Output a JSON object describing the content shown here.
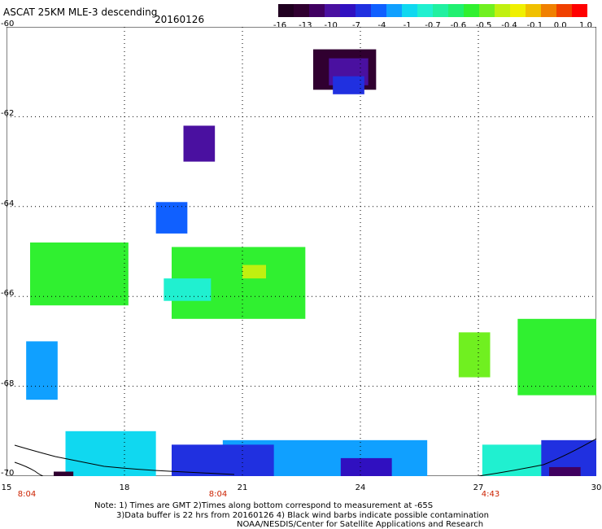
{
  "header": {
    "title": "ASCAT 25KM MLE-3 descending",
    "date": "20160126"
  },
  "legend": {
    "colors": [
      "#200020",
      "#300030",
      "#400060",
      "#4a10a0",
      "#3010c0",
      "#2030e0",
      "#1060ff",
      "#10a0ff",
      "#10d8f0",
      "#20f0d0",
      "#20f0a0",
      "#20f070",
      "#30f030",
      "#70f020",
      "#c0f010",
      "#f0f000",
      "#f0c000",
      "#f08000",
      "#f04000",
      "#ff0000"
    ],
    "labels": [
      "-16",
      "-13",
      "-10",
      "-7",
      "-4",
      "-1",
      "-0.7",
      "-0.6",
      "-0.5",
      "-0.4",
      "-0.1",
      "0.0",
      "1.0"
    ]
  },
  "axes": {
    "y_labels": [
      "-60",
      "-62",
      "-64",
      "-66",
      "-68",
      "-70"
    ],
    "x_labels": [
      "15",
      "18",
      "21",
      "24",
      "27",
      "30"
    ]
  },
  "times": [
    "8:04",
    "8:04",
    "4:43"
  ],
  "footer": {
    "line1": "Note: 1) Times are GMT 2)Times along bottom correspond to measurement at -65S",
    "line2": "3)Data buffer is 22 hrs from 20160126 4) Black wind barbs indicate possible contamination",
    "line3": "NOAA/NESDIS/Center for Satellite Applications and Research"
  },
  "map": {
    "xlim": [
      15,
      30
    ],
    "ylim": [
      -70,
      -60
    ],
    "gridlines_x": [
      18,
      21,
      24,
      27
    ],
    "gridlines_y": [
      -62,
      -64,
      -66,
      -68
    ],
    "data_regions": [
      {
        "lon": 22.8,
        "lat": -60.5,
        "w": 1.6,
        "h": 0.9,
        "color": "#300030"
      },
      {
        "lon": 23.2,
        "lat": -60.7,
        "w": 1.0,
        "h": 0.6,
        "color": "#4a10a0"
      },
      {
        "lon": 23.3,
        "lat": -61.1,
        "w": 0.8,
        "h": 0.4,
        "color": "#2030e0"
      },
      {
        "lon": 19.5,
        "lat": -62.2,
        "w": 0.8,
        "h": 0.8,
        "color": "#4a10a0"
      },
      {
        "lon": 18.8,
        "lat": -63.9,
        "w": 0.8,
        "h": 0.7,
        "color": "#1060ff"
      },
      {
        "lon": 15.6,
        "lat": -64.8,
        "w": 2.5,
        "h": 1.4,
        "color": "#30f030"
      },
      {
        "lon": 19.2,
        "lat": -64.9,
        "w": 3.4,
        "h": 1.6,
        "color": "#30f030"
      },
      {
        "lon": 21.0,
        "lat": -65.3,
        "w": 0.6,
        "h": 0.3,
        "color": "#c0f010"
      },
      {
        "lon": 19.0,
        "lat": -65.6,
        "w": 1.2,
        "h": 0.5,
        "color": "#20f0d0"
      },
      {
        "lon": 15.5,
        "lat": -67.0,
        "w": 0.8,
        "h": 1.3,
        "color": "#10a0ff"
      },
      {
        "lon": 26.5,
        "lat": -66.8,
        "w": 0.8,
        "h": 1.0,
        "color": "#70f020"
      },
      {
        "lon": 28.0,
        "lat": -66.5,
        "w": 3.5,
        "h": 1.7,
        "color": "#30f030"
      },
      {
        "lon": 16.5,
        "lat": -69.0,
        "w": 2.3,
        "h": 1.9,
        "color": "#10d8f0"
      },
      {
        "lon": 20.5,
        "lat": -69.2,
        "w": 5.2,
        "h": 1.8,
        "color": "#10a0ff"
      },
      {
        "lon": 19.2,
        "lat": -69.3,
        "w": 2.6,
        "h": 0.8,
        "color": "#2030e0"
      },
      {
        "lon": 23.5,
        "lat": -69.6,
        "w": 1.3,
        "h": 0.8,
        "color": "#3010c0"
      },
      {
        "lon": 27.1,
        "lat": -69.3,
        "w": 1.9,
        "h": 1.3,
        "color": "#20f0d0"
      },
      {
        "lon": 28.6,
        "lat": -69.2,
        "w": 2.4,
        "h": 1.8,
        "color": "#2030e0"
      },
      {
        "lon": 28.8,
        "lat": -69.8,
        "w": 0.8,
        "h": 0.4,
        "color": "#400060"
      },
      {
        "lon": 16.2,
        "lat": -69.9,
        "w": 0.5,
        "h": 0.3,
        "color": "#300030"
      }
    ]
  }
}
